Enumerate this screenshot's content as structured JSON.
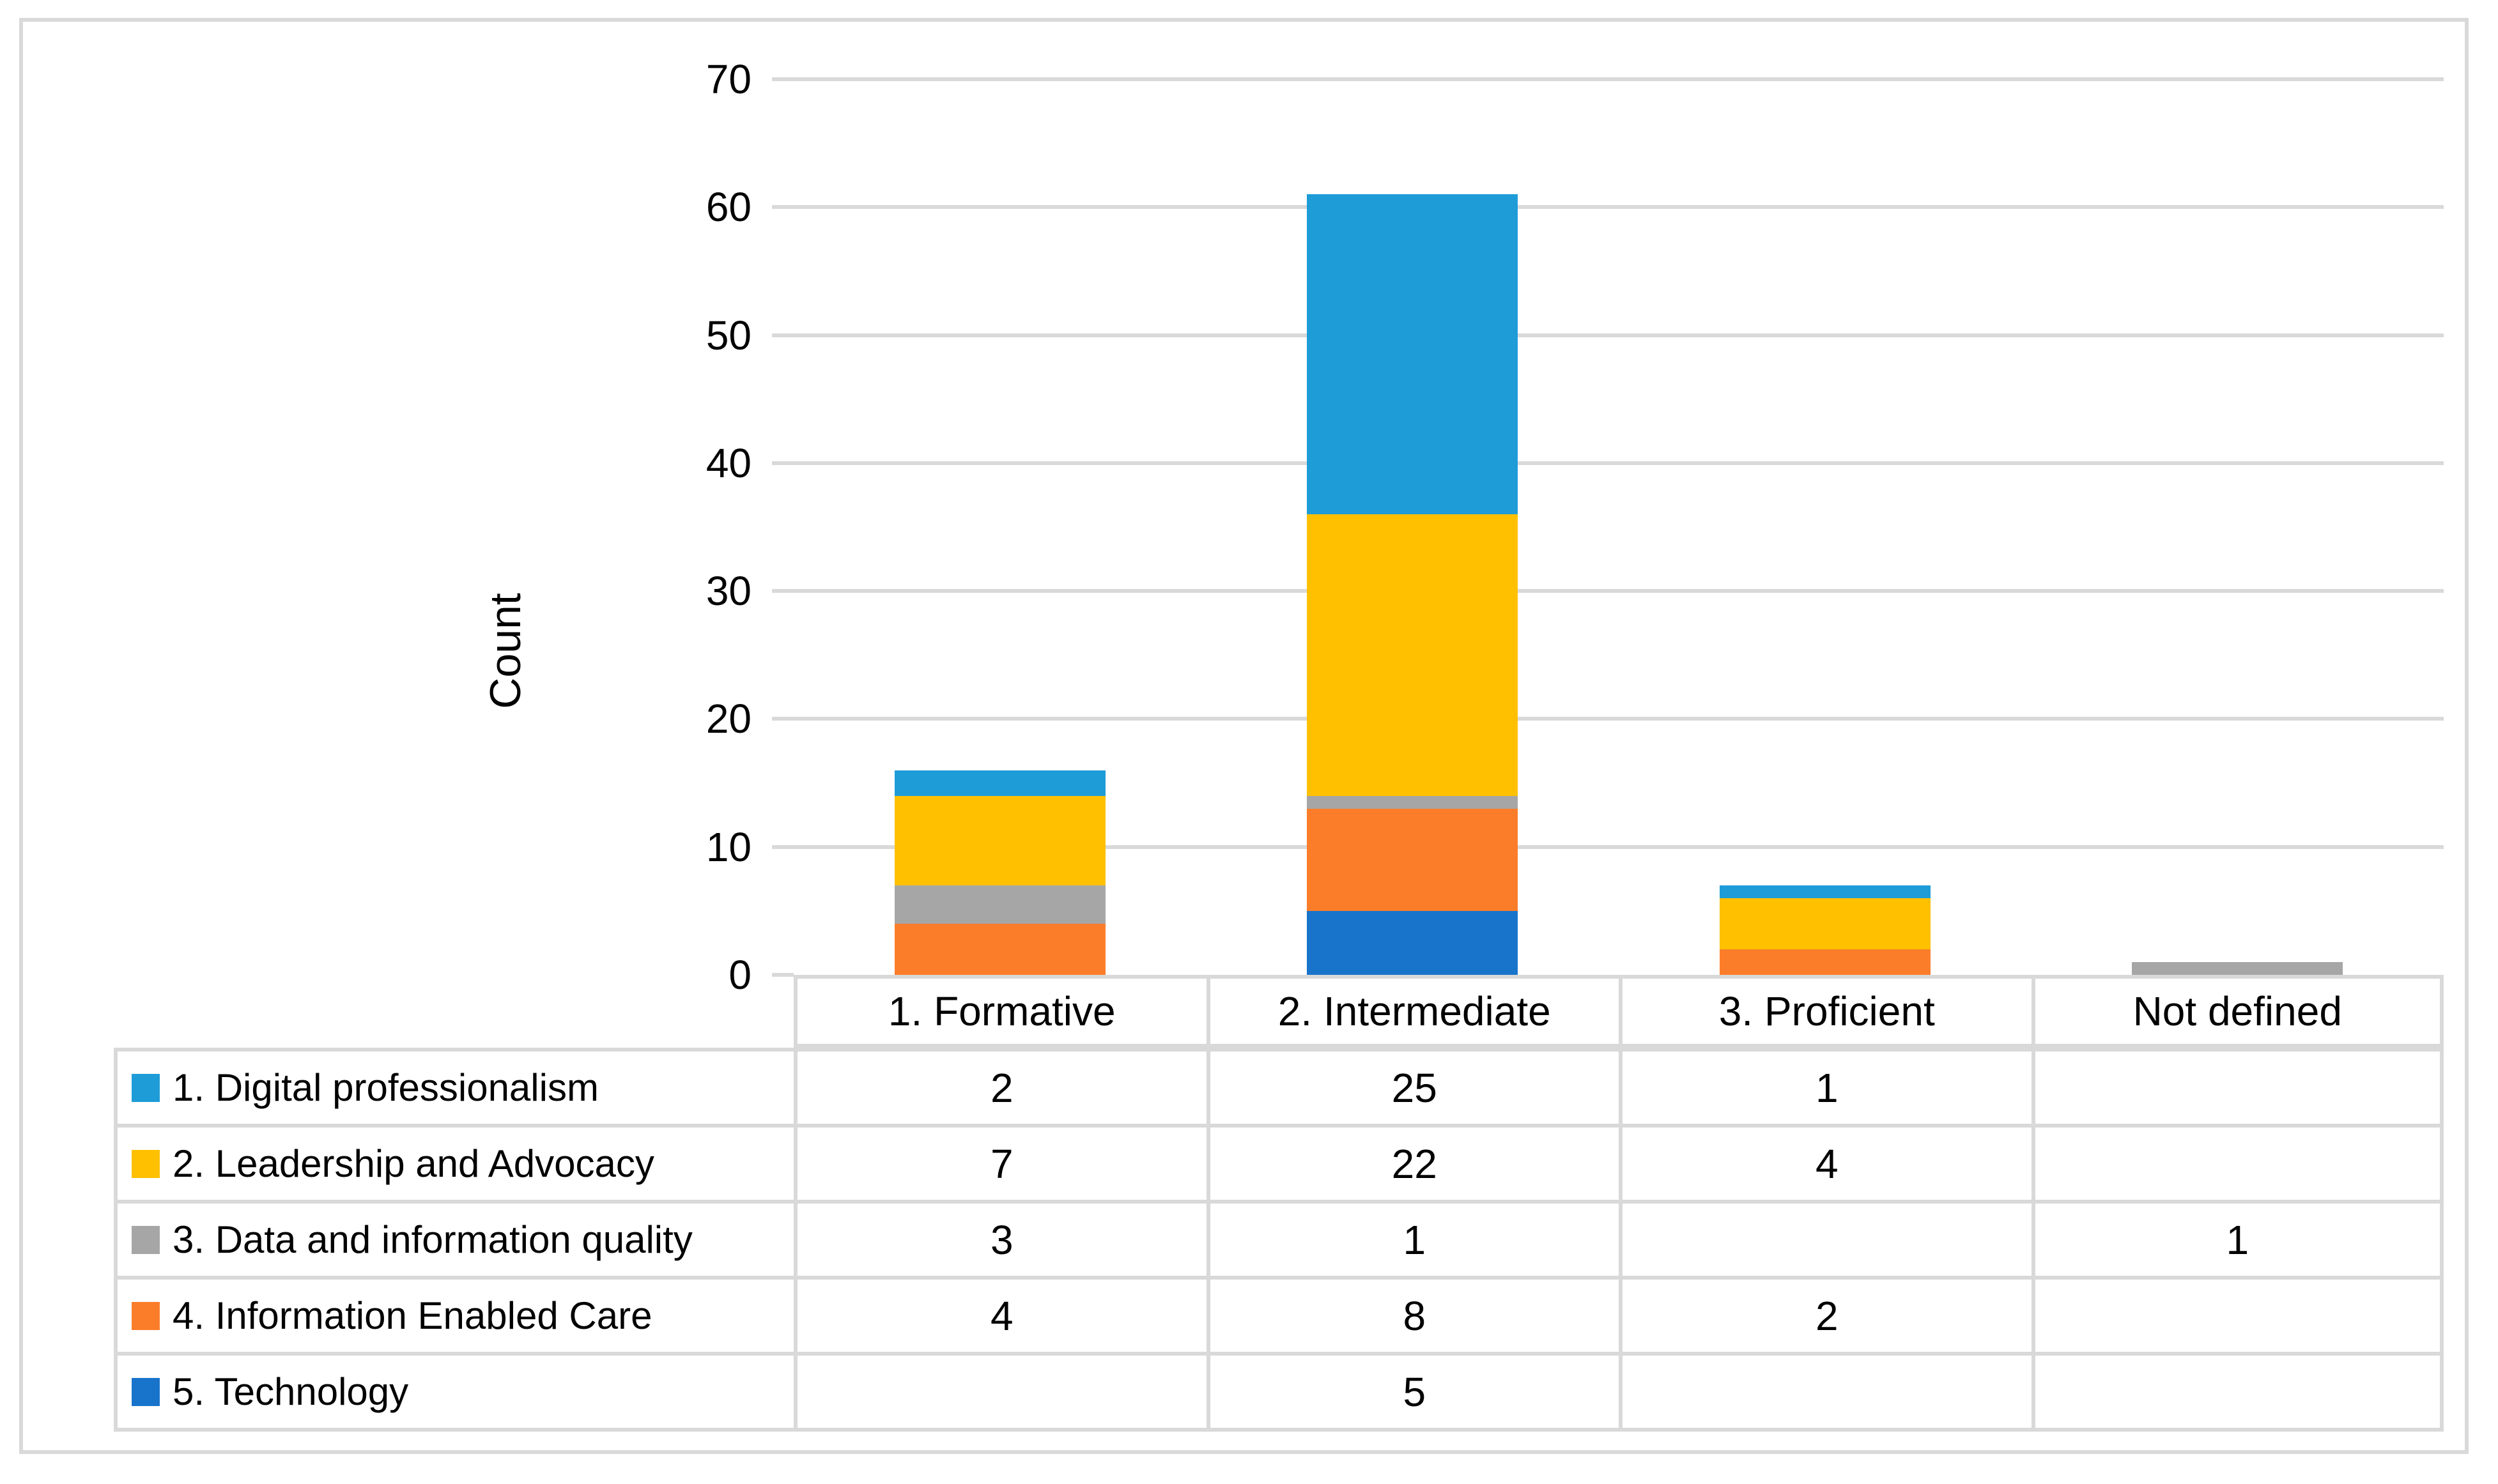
{
  "figure": {
    "type_note": "stacked column chart with data table legend"
  },
  "chart_data": {
    "type": "bar",
    "stacked": true,
    "title": "",
    "xlabel": "",
    "ylabel": "Count",
    "categories": [
      "1. Formative",
      "2. Intermediate",
      "3. Proficient",
      "Not defined"
    ],
    "series": [
      {
        "name": "1. Digital professionalism",
        "color": "#1E9CD8",
        "values": [
          2,
          25,
          1,
          null
        ]
      },
      {
        "name": "2. Leadership and Advocacy",
        "color": "#FFC000",
        "values": [
          7,
          22,
          4,
          null
        ]
      },
      {
        "name": "3. Data and information quality",
        "color": "#A6A6A6",
        "values": [
          3,
          1,
          null,
          1
        ]
      },
      {
        "name": "4. Information Enabled Care",
        "color": "#FB7D2A",
        "values": [
          4,
          8,
          2,
          null
        ]
      },
      {
        "name": "5. Technology",
        "color": "#1874CB",
        "values": [
          null,
          5,
          null,
          null
        ]
      }
    ],
    "y_axis": {
      "min": 0,
      "max": 70,
      "step": 10,
      "tick_labels": [
        "0",
        "10",
        "20",
        "30",
        "40",
        "50",
        "60",
        "70"
      ]
    },
    "grid": true,
    "legend_position": "left-of-data-table",
    "colors": {
      "gridline": "#D9D9D9",
      "table_border": "#D9D9D9",
      "text": "#000000",
      "background": "#FFFFFF"
    }
  }
}
